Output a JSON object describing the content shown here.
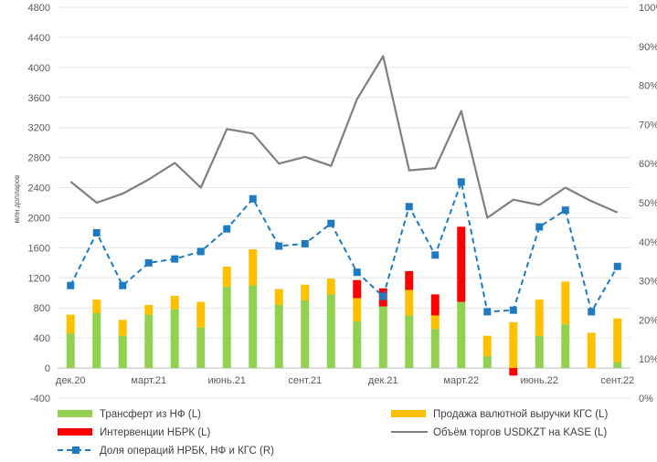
{
  "chart_data": {
    "type": "bar",
    "ylabel": "млн долларов",
    "x": [
      "дек.20",
      "янв.21",
      "фев.21",
      "март.21",
      "апр.21",
      "май.21",
      "июнь.21",
      "июль.21",
      "авг.21",
      "сент.21",
      "окт.21",
      "нояб.21",
      "дек.21",
      "янв.22",
      "фев.22",
      "март.22",
      "апр.22",
      "май.22",
      "июнь.22",
      "июль.22",
      "авг.22",
      "сент.22"
    ],
    "x_tick_labels": [
      "дек.20",
      "март.21",
      "июнь.21",
      "сент.21",
      "дек.21",
      "март.22",
      "июнь.22",
      "сент.22"
    ],
    "ylim_left": [
      -400,
      4800
    ],
    "yticks_left": [
      "-400",
      "0",
      "400",
      "800",
      "1200",
      "1600",
      "2000",
      "2400",
      "2800",
      "3200",
      "3600",
      "4000",
      "4400",
      "4800"
    ],
    "ylim_right": [
      0,
      100
    ],
    "yticks_right": [
      "0%",
      "10%",
      "20%",
      "30%",
      "40%",
      "50%",
      "60%",
      "70%",
      "80%",
      "90%",
      "100%"
    ],
    "series": [
      {
        "name": "Трансферт из НФ (L)",
        "type": "bar",
        "axis": "left",
        "color": "#92D050",
        "values": [
          460,
          730,
          430,
          710,
          780,
          540,
          1080,
          1100,
          840,
          900,
          980,
          620,
          820,
          700,
          520,
          880,
          160,
          0,
          430,
          580,
          0,
          80
        ]
      },
      {
        "name": "Продажа валютной выручки КГС (L)",
        "type": "bar",
        "axis": "left",
        "color": "#FFC000",
        "values": [
          250,
          180,
          210,
          130,
          180,
          340,
          270,
          480,
          210,
          210,
          210,
          310,
          0,
          340,
          180,
          0,
          270,
          610,
          480,
          570,
          470,
          580
        ]
      },
      {
        "name": "Интервенции НБРК (L)",
        "type": "bar",
        "axis": "left",
        "color": "#FF0000",
        "values": [
          0,
          0,
          0,
          0,
          0,
          0,
          0,
          0,
          0,
          0,
          0,
          240,
          240,
          250,
          280,
          1000,
          0,
          -100,
          0,
          0,
          0,
          0
        ]
      },
      {
        "name": "Объём торгов USDKZT на KASE (L)",
        "type": "line",
        "axis": "left",
        "color": "#7F7F7F",
        "values": [
          2480,
          2200,
          2320,
          2510,
          2730,
          2400,
          3180,
          3120,
          2720,
          2810,
          2690,
          3580,
          4150,
          2630,
          2660,
          3420,
          2000,
          2240,
          2170,
          2400,
          2220,
          2070
        ]
      },
      {
        "name": "Доля операций НРБК, НФ и КГС (R)",
        "type": "line",
        "axis": "right",
        "color": "#1F7BC1",
        "dashed": true,
        "values": [
          28.8,
          42.3,
          28.8,
          34.6,
          35.6,
          37.5,
          43.3,
          51.0,
          38.9,
          39.5,
          44.7,
          32.2,
          26.0,
          49.0,
          36.6,
          55.3,
          22.1,
          22.5,
          43.8,
          48.1,
          22.1,
          33.7
        ]
      }
    ],
    "legend_position": "bottom",
    "grid": "horizontal"
  }
}
